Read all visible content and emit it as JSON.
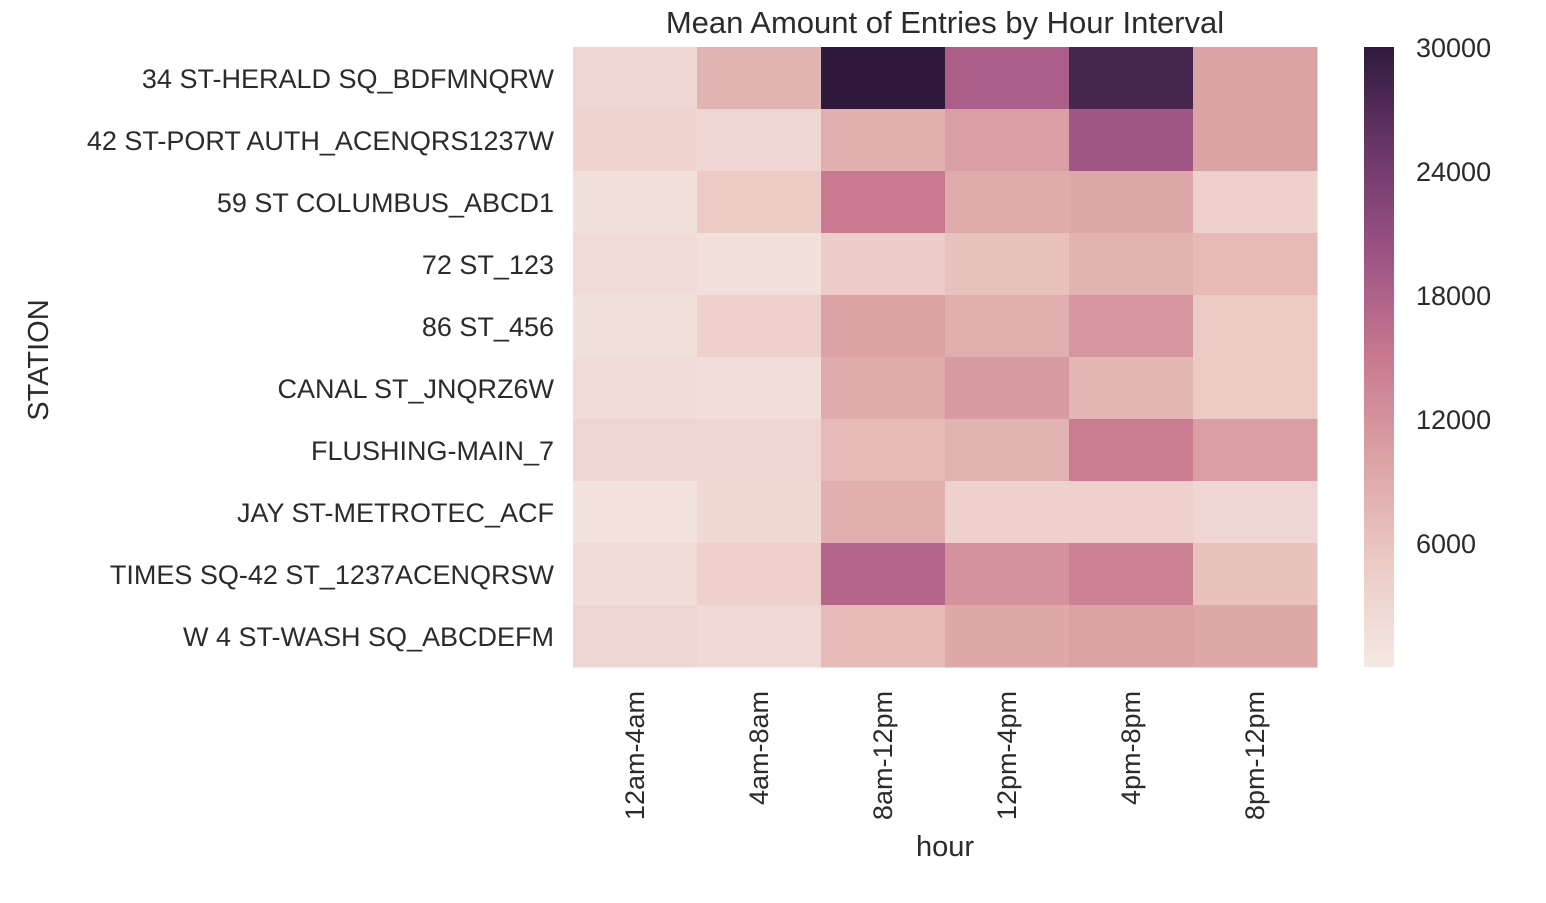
{
  "chart_data": {
    "type": "heatmap",
    "title": "Mean Amount of Entries by Hour Interval",
    "xlabel": "hour",
    "ylabel": "STATION",
    "x": [
      "12am-4am",
      "4am-8am",
      "8am-12pm",
      "12pm-4pm",
      "4pm-8pm",
      "8pm-12pm"
    ],
    "y": [
      "34 ST-HERALD SQ_BDFMNQRW",
      "42 ST-PORT AUTH_ACENQRS1237W",
      "59 ST COLUMBUS_ABCD1",
      "72 ST_123",
      "86 ST_456",
      "CANAL ST_JNQRZ6W",
      "FLUSHING-MAIN_7",
      "JAY ST-METROTEC_ACF",
      "TIMES SQ-42 ST_1237ACENQRSW",
      "W 4 ST-WASH SQ_ABCDEFM"
    ],
    "values": [
      [
        3000,
        8000,
        30000,
        18500,
        28000,
        10000
      ],
      [
        3500,
        3000,
        8500,
        10500,
        19500,
        10000
      ],
      [
        1500,
        5000,
        15000,
        9000,
        9500,
        4000
      ],
      [
        2200,
        1500,
        4500,
        6000,
        8000,
        7000
      ],
      [
        1500,
        4000,
        10000,
        8500,
        11500,
        5000
      ],
      [
        2000,
        1800,
        9000,
        11000,
        7500,
        5000
      ],
      [
        3000,
        3000,
        7000,
        8000,
        14500,
        10500
      ],
      [
        1000,
        2800,
        8500,
        4000,
        4000,
        3000
      ],
      [
        2300,
        4000,
        17500,
        12000,
        14000,
        6000
      ],
      [
        3200,
        2500,
        7000,
        9500,
        10000,
        9500
      ]
    ],
    "colorbar": {
      "min": 0,
      "max": 30000,
      "ticks": [
        "6000",
        "12000",
        "18000",
        "24000",
        "30000"
      ],
      "colors": [
        "#f5e9e4",
        "#eccac6",
        "#dca3a6",
        "#c8798f",
        "#9d5285",
        "#6b3768",
        "#2f1a3d"
      ]
    },
    "grid": false
  }
}
